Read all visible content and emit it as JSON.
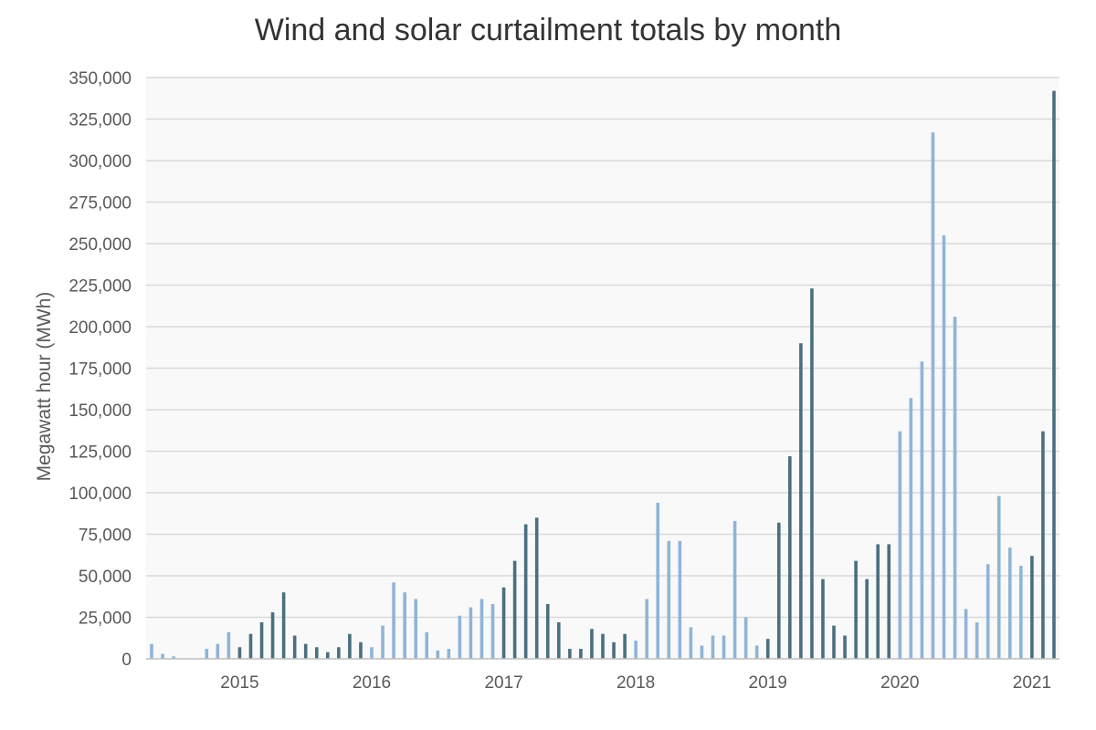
{
  "chart_data": {
    "type": "bar",
    "title": "Wind and solar curtailment totals by month",
    "xlabel": "",
    "ylabel": "Megawatt hour (MWh)",
    "ylim": [
      0,
      350000
    ],
    "yticks": [
      0,
      25000,
      50000,
      75000,
      100000,
      125000,
      150000,
      175000,
      200000,
      225000,
      250000,
      275000,
      300000,
      325000,
      350000
    ],
    "ytick_labels": [
      "0",
      "25,000",
      "50,000",
      "75,000",
      "100,000",
      "125,000",
      "150,000",
      "175,000",
      "200,000",
      "225,000",
      "250,000",
      "275,000",
      "300,000",
      "325,000",
      "350,000"
    ],
    "x_tick_labels": [
      "2015",
      "2016",
      "2017",
      "2018",
      "2019",
      "2020",
      "2021"
    ],
    "x_tick_month_index": [
      8,
      20,
      32,
      44,
      56,
      68,
      80
    ],
    "grid": true,
    "colors": {
      "light": "#8fb4d8",
      "dark": "#4a6f80",
      "grid": "#d9d9d9",
      "plot_bg": "#f9f9f9",
      "axis": "#bfbfbf"
    },
    "months": [
      "2014-05",
      "2014-06",
      "2014-07",
      "2014-08",
      "2014-09",
      "2014-10",
      "2014-11",
      "2014-12",
      "2015-01",
      "2015-02",
      "2015-03",
      "2015-04",
      "2015-05",
      "2015-06",
      "2015-07",
      "2015-08",
      "2015-09",
      "2015-10",
      "2015-11",
      "2015-12",
      "2016-01",
      "2016-02",
      "2016-03",
      "2016-04",
      "2016-05",
      "2016-06",
      "2016-07",
      "2016-08",
      "2016-09",
      "2016-10",
      "2016-11",
      "2016-12",
      "2017-01",
      "2017-02",
      "2017-03",
      "2017-04",
      "2017-05",
      "2017-06",
      "2017-07",
      "2017-08",
      "2017-09",
      "2017-10",
      "2017-11",
      "2017-12",
      "2018-01",
      "2018-02",
      "2018-03",
      "2018-04",
      "2018-05",
      "2018-06",
      "2018-07",
      "2018-08",
      "2018-09",
      "2018-10",
      "2018-11",
      "2018-12",
      "2019-01",
      "2019-02",
      "2019-03",
      "2019-04",
      "2019-05",
      "2019-06",
      "2019-07",
      "2019-08",
      "2019-09",
      "2019-10",
      "2019-11",
      "2019-12",
      "2020-01",
      "2020-02",
      "2020-03",
      "2020-04",
      "2020-05",
      "2020-06",
      "2020-07",
      "2020-08",
      "2020-09",
      "2020-10",
      "2020-11",
      "2020-12",
      "2021-01",
      "2021-02",
      "2021-03"
    ],
    "values": [
      9000,
      3000,
      1500,
      0,
      0,
      6000,
      9000,
      16000,
      7000,
      15000,
      22000,
      28000,
      40000,
      14000,
      9000,
      7000,
      4000,
      7000,
      15000,
      10000,
      7000,
      20000,
      46000,
      40000,
      36000,
      16000,
      5000,
      6000,
      26000,
      31000,
      36000,
      33000,
      43000,
      59000,
      81000,
      85000,
      33000,
      22000,
      6000,
      6000,
      18000,
      15000,
      10000,
      15000,
      11000,
      36000,
      94000,
      71000,
      71000,
      19000,
      8000,
      14000,
      14000,
      83000,
      25000,
      8000,
      12000,
      82000,
      122000,
      190000,
      223000,
      48000,
      20000,
      14000,
      59000,
      48000,
      69000,
      69000,
      137000,
      157000,
      179000,
      317000,
      255000,
      206000,
      30000,
      22000,
      57000,
      98000,
      67000,
      56000,
      62000,
      137000,
      342000
    ],
    "shade": [
      "light",
      "light",
      "light",
      "light",
      "light",
      "light",
      "light",
      "light",
      "dark",
      "dark",
      "dark",
      "dark",
      "dark",
      "dark",
      "dark",
      "dark",
      "dark",
      "dark",
      "dark",
      "dark",
      "light",
      "light",
      "light",
      "light",
      "light",
      "light",
      "light",
      "light",
      "light",
      "light",
      "light",
      "light",
      "dark",
      "dark",
      "dark",
      "dark",
      "dark",
      "dark",
      "dark",
      "dark",
      "dark",
      "dark",
      "dark",
      "dark",
      "light",
      "light",
      "light",
      "light",
      "light",
      "light",
      "light",
      "light",
      "light",
      "light",
      "light",
      "light",
      "dark",
      "dark",
      "dark",
      "dark",
      "dark",
      "dark",
      "dark",
      "dark",
      "dark",
      "dark",
      "dark",
      "dark",
      "light",
      "light",
      "light",
      "light",
      "light",
      "light",
      "light",
      "light",
      "light",
      "light",
      "light",
      "light",
      "dark",
      "dark",
      "dark"
    ]
  }
}
